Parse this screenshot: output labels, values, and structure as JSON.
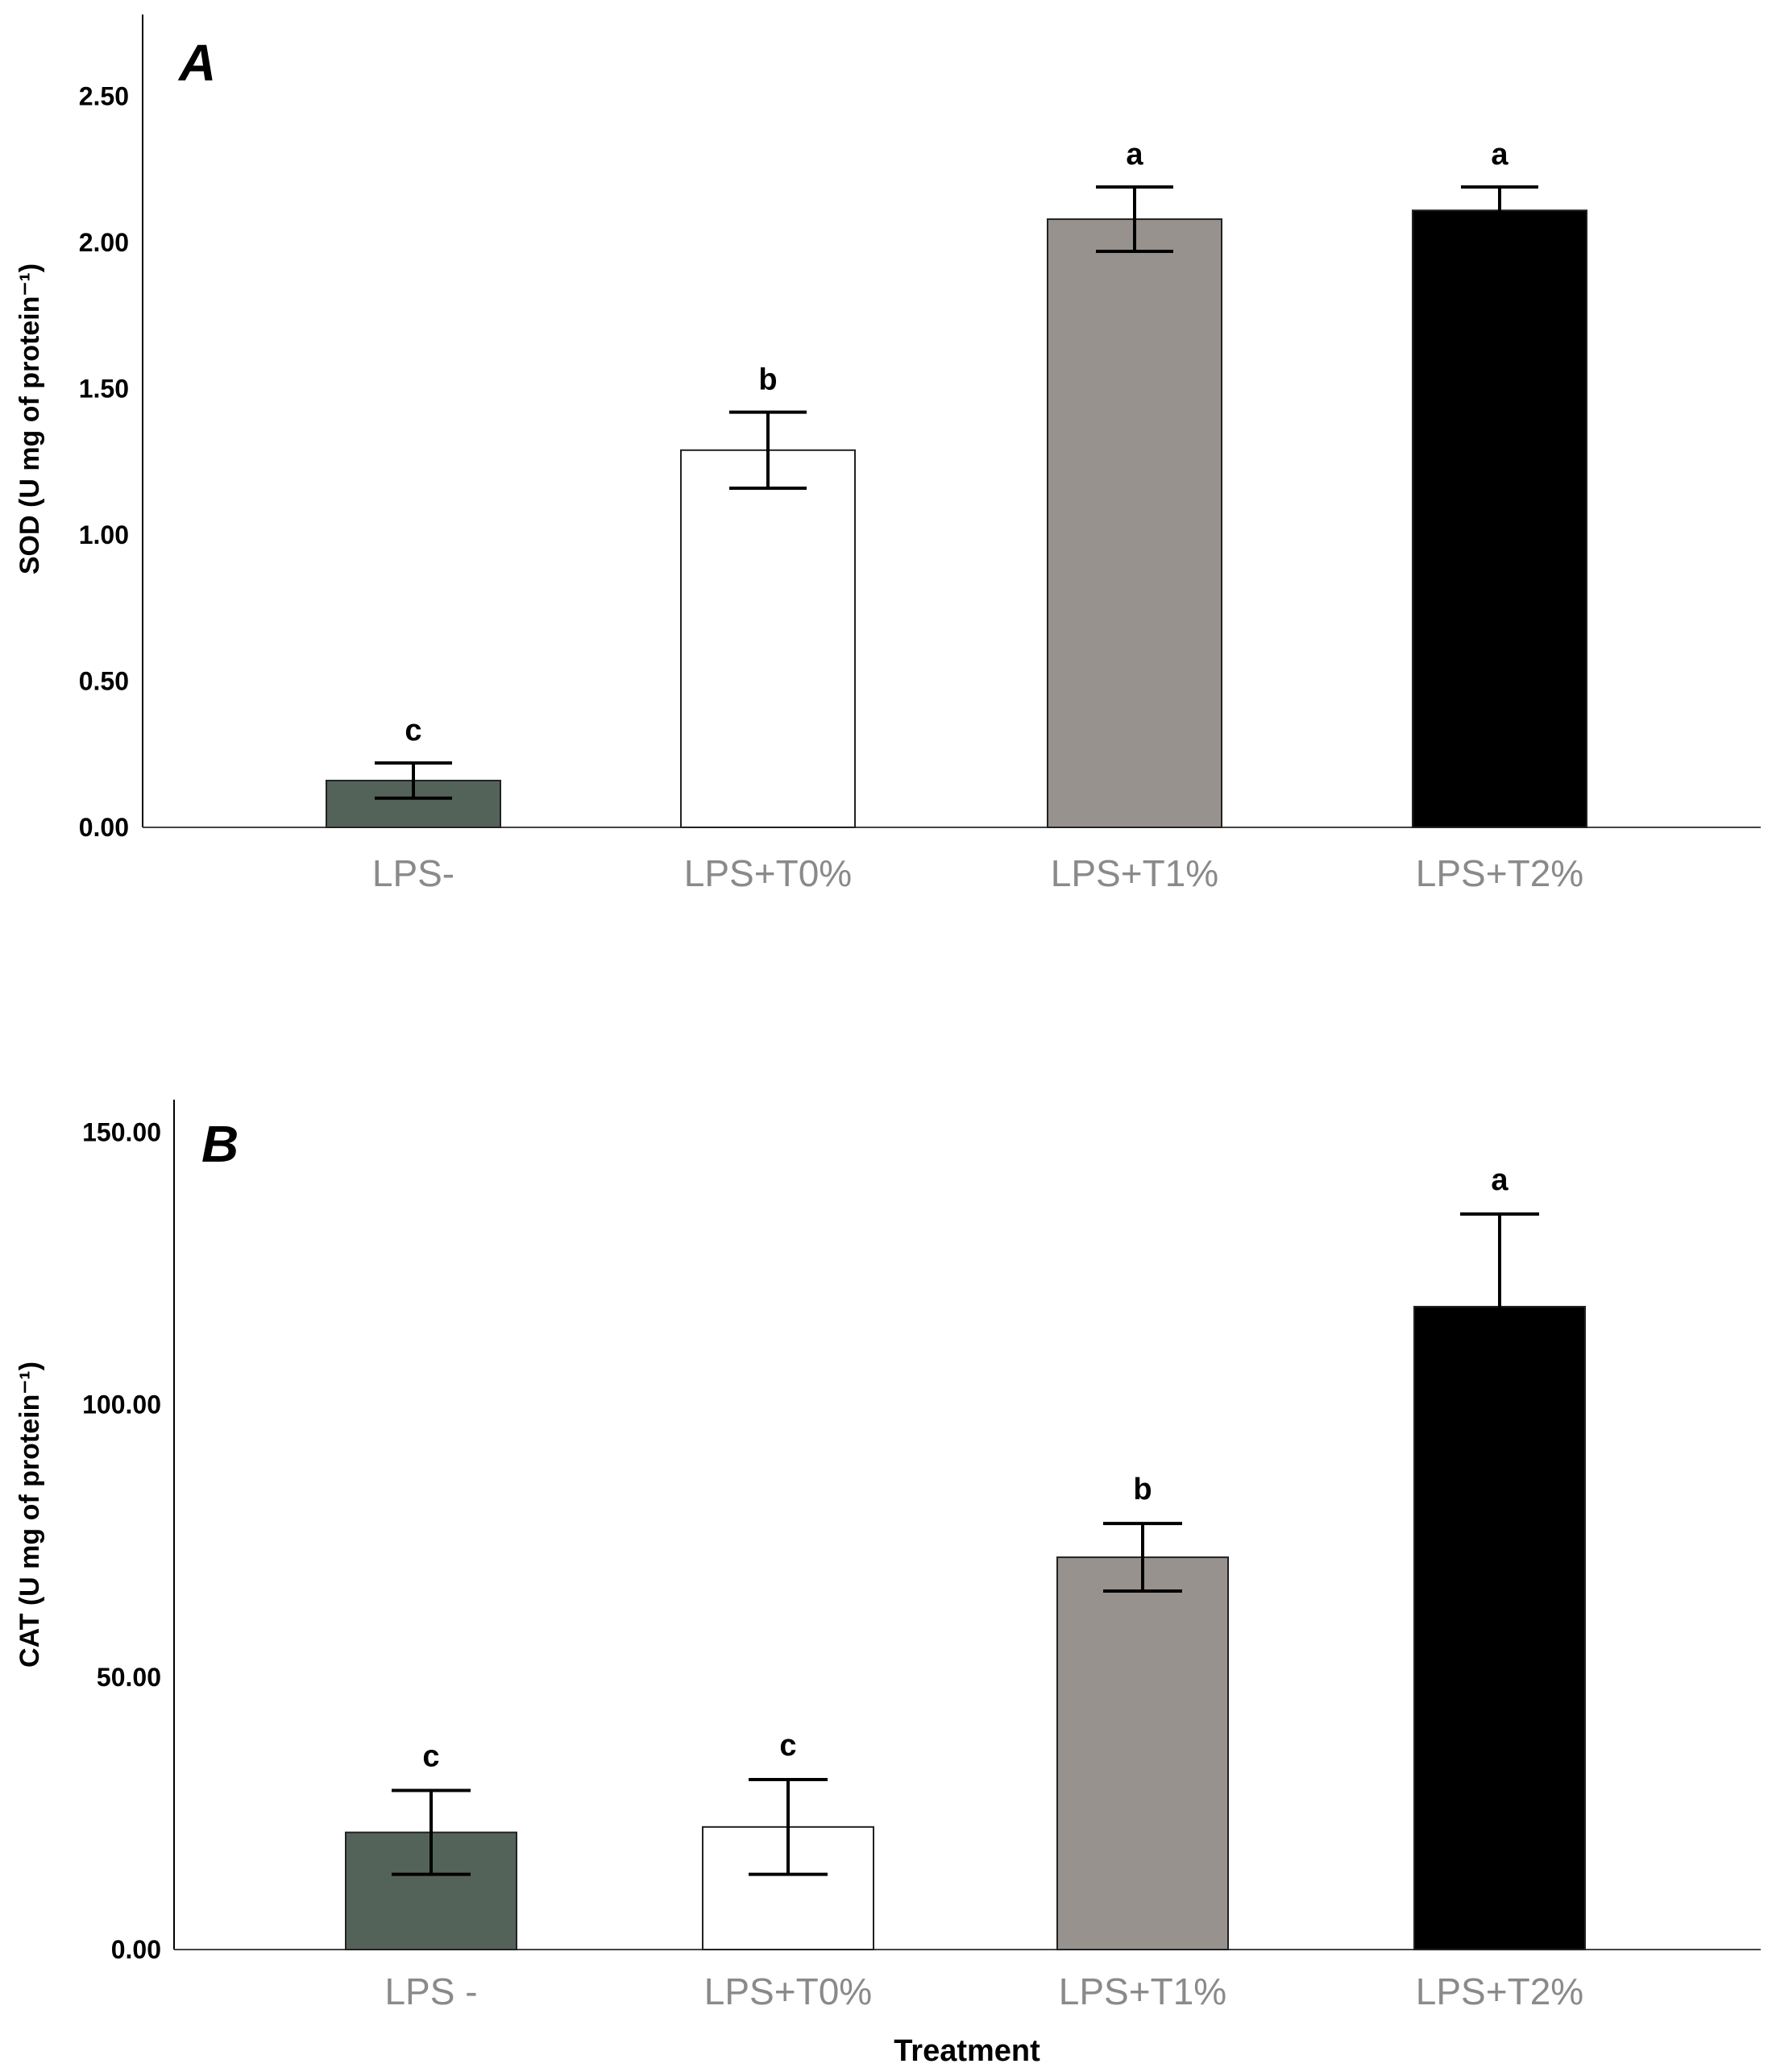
{
  "chart_data": [
    {
      "type": "bar",
      "panel_label": "A",
      "ylabel": "SOD (U mg of protein⁻¹)",
      "xlabel": "",
      "categories": [
        "LPS-",
        "LPS+T0%",
        "LPS+T1%",
        "LPS+T2%"
      ],
      "values": [
        0.16,
        1.29,
        2.08,
        2.11
      ],
      "error": [
        0.06,
        0.13,
        0.11,
        0.08
      ],
      "significance": [
        "c",
        "b",
        "a",
        "a"
      ],
      "colors": [
        "#536359",
        "#ffffff",
        "#98928e",
        "#000000"
      ],
      "yticks": [
        0.0,
        0.5,
        1.0,
        1.5,
        2.0,
        2.5
      ],
      "ytick_labels": [
        "0.00",
        "0.50",
        "1.00",
        "1.50",
        "2.00",
        "2.50"
      ],
      "ylim": [
        0,
        2.78
      ],
      "grid": false
    },
    {
      "type": "bar",
      "panel_label": "B",
      "ylabel": "CAT (U mg of protein⁻¹)",
      "xlabel": "Treatment",
      "categories": [
        "LPS -",
        "LPS+T0%",
        "LPS+T1%",
        "LPS+T2%"
      ],
      "values": [
        21.5,
        22.5,
        72.0,
        118.0
      ],
      "error": [
        7.7,
        8.7,
        6.2,
        17.0
      ],
      "significance": [
        "c",
        "c",
        "b",
        "a"
      ],
      "colors": [
        "#536359",
        "#ffffff",
        "#98928e",
        "#000000"
      ],
      "yticks": [
        0.0,
        50.0,
        100.0,
        150.0
      ],
      "ytick_labels": [
        "0.00",
        "50.00",
        "100.00",
        "150.00"
      ],
      "ylim": [
        0,
        156
      ],
      "grid": false
    }
  ]
}
